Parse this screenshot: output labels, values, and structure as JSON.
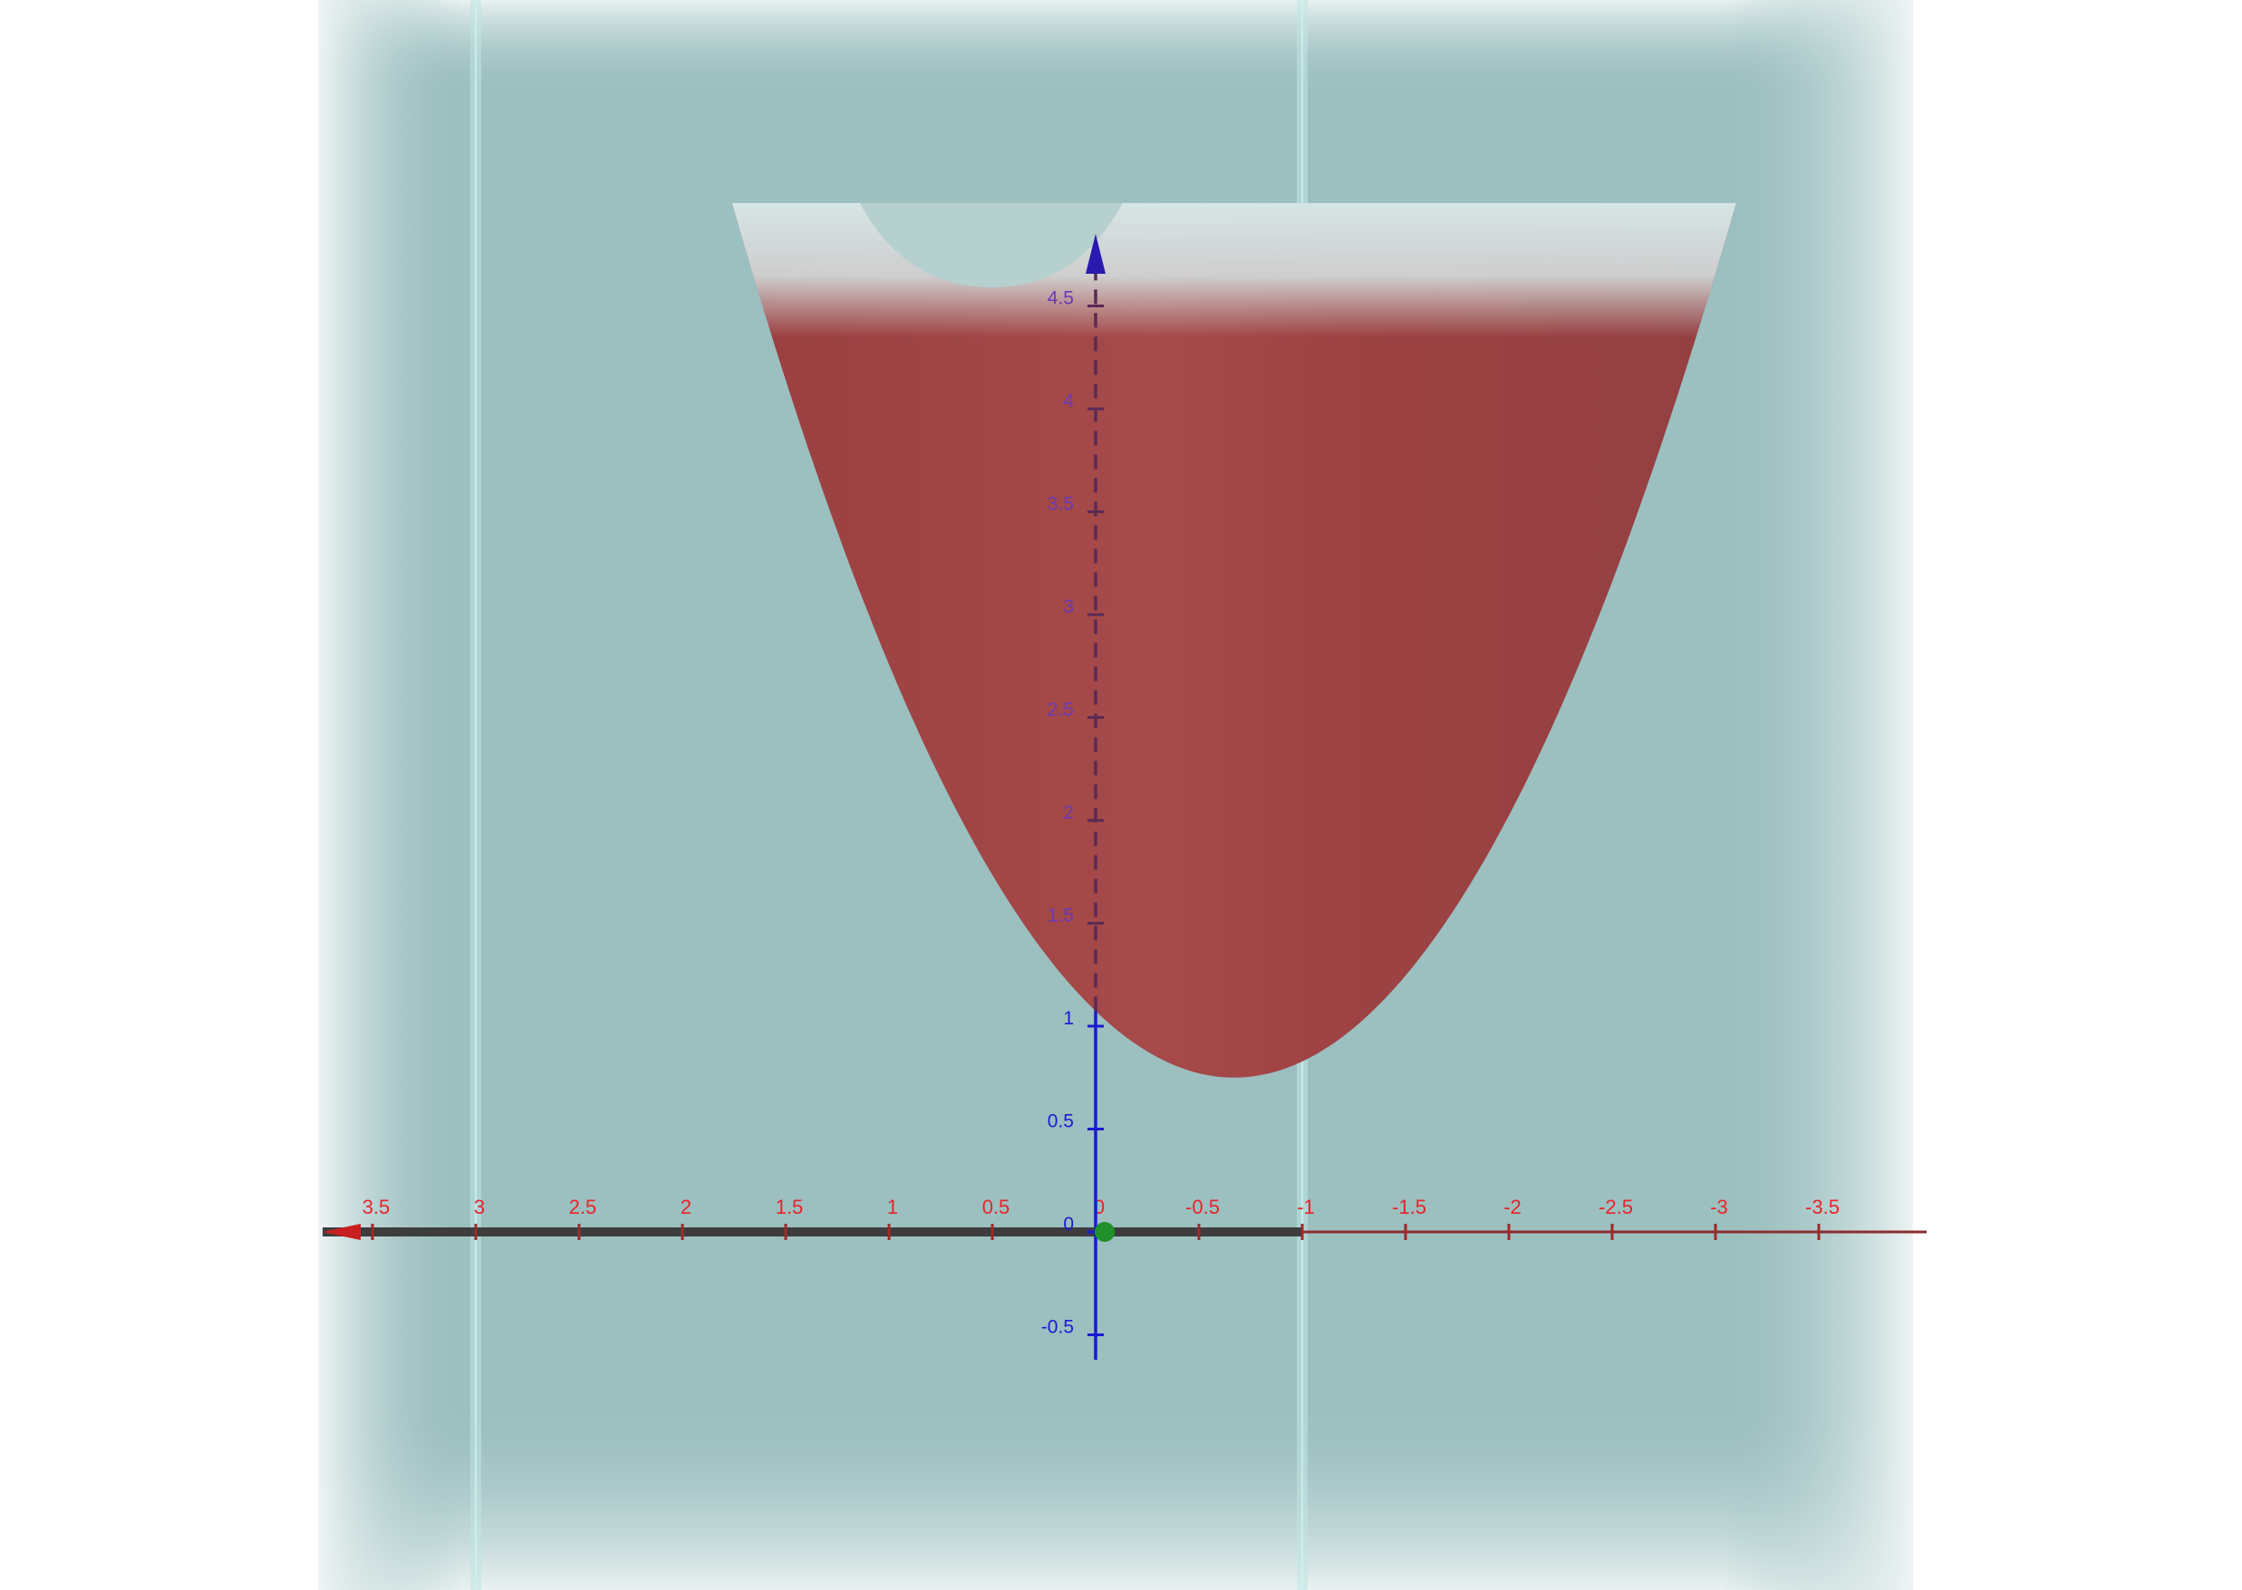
{
  "chart_data": {
    "type": "surface",
    "surface": {
      "kind": "paraboloid",
      "vertex_x": -0.67,
      "vertex_height": 0.75,
      "top_height": 5.0,
      "top_half_width": 2.43,
      "color": "#9e4040"
    },
    "x_axis": {
      "orientation": "reversed",
      "range": [
        -3.9,
        3.7
      ],
      "ticks": [
        3.5,
        3,
        2.5,
        2,
        1.5,
        1,
        0.5,
        0,
        -0.5,
        -1,
        -1.5,
        -2,
        -2.5,
        -3,
        -3.5
      ],
      "tick_labels": [
        "3.5",
        "3",
        "2.5",
        "2",
        "1.5",
        "1",
        "0.5",
        "0",
        "-0.5",
        "-1",
        "-1.5",
        "-2",
        "-2.5",
        "-3",
        "-3.5"
      ],
      "color": "#e8242b"
    },
    "z_axis": {
      "range": [
        -0.65,
        4.75
      ],
      "ticks": [
        -0.5,
        0,
        0.5,
        1,
        1.5,
        2,
        2.5,
        3,
        3.5,
        4,
        4.5
      ],
      "tick_labels": [
        "-0.5",
        "0",
        "0.5",
        "1",
        "1.5",
        "2",
        "2.5",
        "3",
        "3.5",
        "4",
        "4.5"
      ],
      "color": "#1a1ad8",
      "hidden_color": "#6a3ab8"
    },
    "vertical_planes_x": [
      3,
      -1
    ],
    "colors": {
      "background": "#9cbfc0",
      "plane": "#bfe6e4",
      "top_cap": "#d7e6e6"
    }
  }
}
